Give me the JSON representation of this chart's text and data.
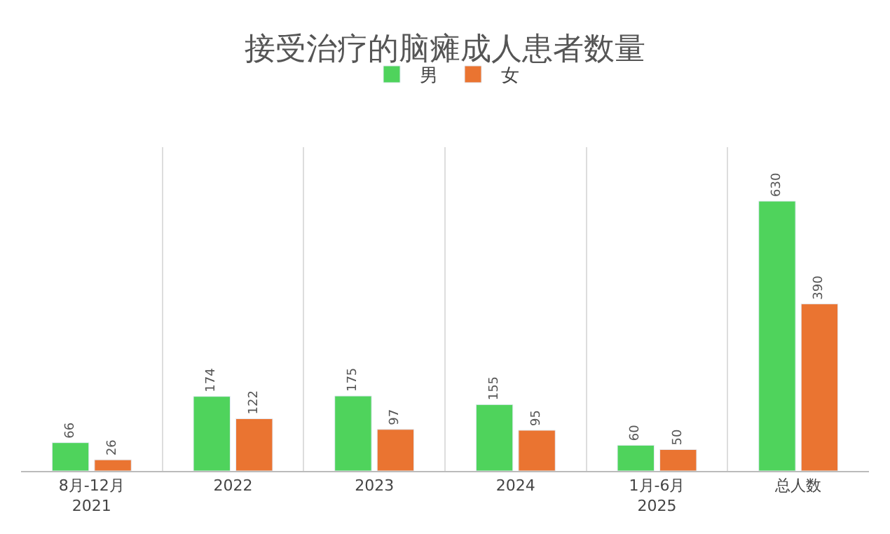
{
  "chart_data": {
    "type": "bar",
    "title": "接受治疗的脑瘫成人患者数量",
    "categories": [
      "8月-12月\n2021",
      "2022",
      "2023",
      "2024",
      "1月-6月\n2025",
      "总人数"
    ],
    "series": [
      {
        "name": "男",
        "color": "#4fd35c",
        "values": [
          66,
          174,
          175,
          155,
          60,
          630
        ]
      },
      {
        "name": "女",
        "color": "#ea7431",
        "values": [
          26,
          122,
          97,
          95,
          50,
          390
        ]
      }
    ],
    "data_labels": true,
    "grid": "x",
    "legend": "top"
  }
}
